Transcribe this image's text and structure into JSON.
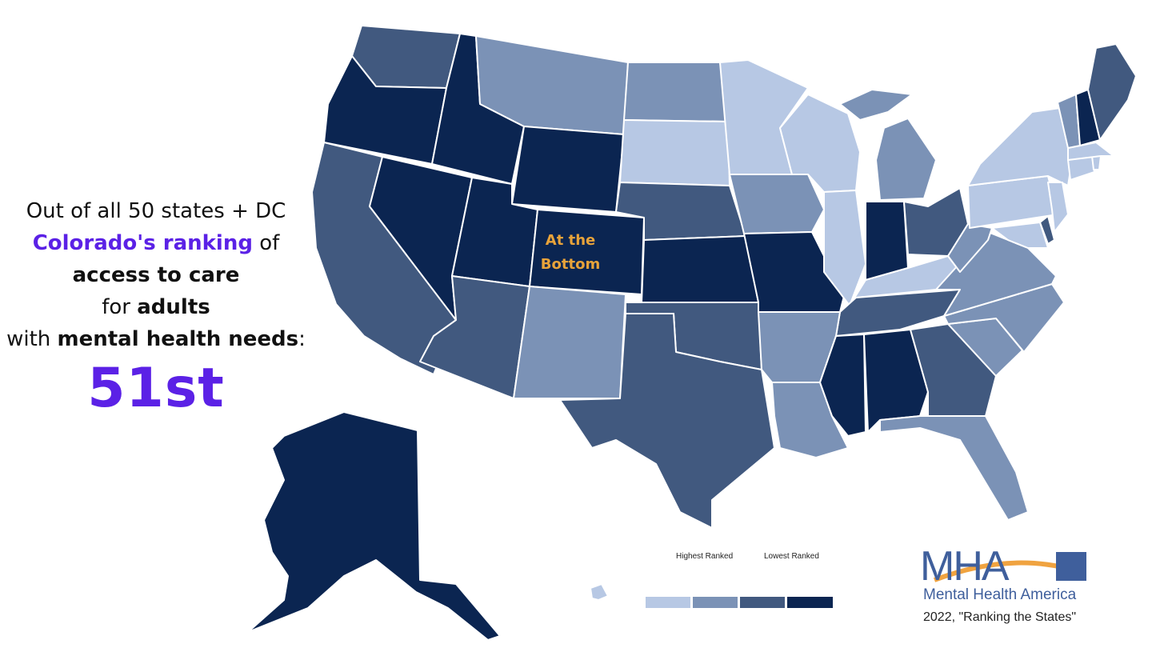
{
  "headline": {
    "line1": "Out of all 50 states + DC",
    "line2_accent": "Colorado's ranking",
    "line2_rest": " of",
    "line3_bold": "access to care",
    "line4_pre": "for ",
    "line4_bold": "adults",
    "line5_pre": "with ",
    "line5_bold": "mental health needs",
    "line5_post": ":",
    "rank": "51st"
  },
  "map": {
    "highlight_state": "Colorado",
    "highlight_label_1": "At the",
    "highlight_label_2": "Bottom",
    "colors": {
      "tier1": "#b7c8e4",
      "tier2": "#7b92b6",
      "tier3": "#41597f",
      "tier4": "#0b2551"
    }
  },
  "legend": {
    "left_label": "Highest Ranked",
    "right_label": "Lowest Ranked"
  },
  "branding": {
    "logo_text": "MHA",
    "org_name": "Mental Health America",
    "source": "2022, \"Ranking the States\""
  }
}
